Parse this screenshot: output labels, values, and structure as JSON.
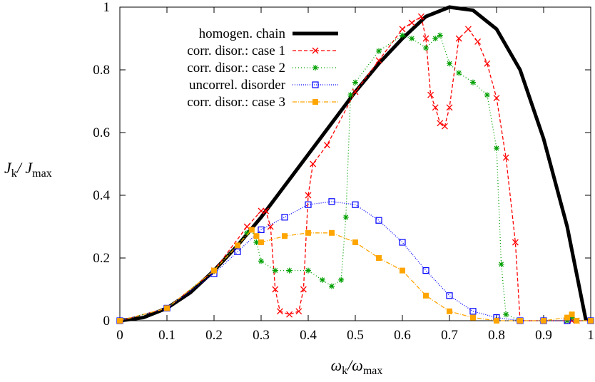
{
  "chart_data": {
    "type": "line",
    "title": "",
    "xlim": [
      0,
      1
    ],
    "ylim": [
      0,
      1
    ],
    "xticks": [
      "0",
      "0.1",
      "0.2",
      "0.3",
      "0.4",
      "0.5",
      "0.6",
      "0.7",
      "0.8",
      "0.9",
      "1"
    ],
    "yticks": [
      "0",
      "0.2",
      "0.4",
      "0.6",
      "0.8",
      "1"
    ],
    "xlabel": {
      "main": "ω",
      "sub1": "k",
      "sep": "/ω",
      "sub2": "max"
    },
    "ylabel": {
      "main": "J",
      "sub1": "k",
      "sep": "/ J",
      "sub2": "max"
    },
    "legend_position": "top-left",
    "series": [
      {
        "name": "homogen. chain",
        "color": "#000000",
        "marker": "dot",
        "dash": "",
        "x": [
          0,
          0.05,
          0.1,
          0.15,
          0.2,
          0.25,
          0.3,
          0.35,
          0.4,
          0.45,
          0.5,
          0.55,
          0.6,
          0.65,
          0.7,
          0.75,
          0.8,
          0.85,
          0.9,
          0.95,
          0.99
        ],
        "y": [
          0,
          0.01,
          0.04,
          0.09,
          0.16,
          0.24,
          0.33,
          0.43,
          0.53,
          0.63,
          0.73,
          0.82,
          0.9,
          0.97,
          1.0,
          0.99,
          0.93,
          0.8,
          0.58,
          0.3,
          0.0
        ]
      },
      {
        "name": "corr. disor.: case 1",
        "color": "#ff0000",
        "marker": "x",
        "dash": "5,3",
        "x": [
          0,
          0.1,
          0.2,
          0.27,
          0.3,
          0.31,
          0.32,
          0.33,
          0.34,
          0.36,
          0.38,
          0.39,
          0.4,
          0.41,
          0.44,
          0.5,
          0.55,
          0.6,
          0.62,
          0.64,
          0.65,
          0.66,
          0.67,
          0.68,
          0.69,
          0.7,
          0.72,
          0.74,
          0.76,
          0.78,
          0.8,
          0.82,
          0.84,
          0.85,
          0.9,
          0.95,
          0.96,
          0.97,
          1.0
        ],
        "y": [
          0,
          0.04,
          0.16,
          0.3,
          0.35,
          0.35,
          0.3,
          0.1,
          0.03,
          0.02,
          0.03,
          0.1,
          0.4,
          0.5,
          0.56,
          0.73,
          0.83,
          0.93,
          0.95,
          0.97,
          0.9,
          0.72,
          0.68,
          0.63,
          0.62,
          0.68,
          0.9,
          0.93,
          0.89,
          0.82,
          0.71,
          0.52,
          0.25,
          0.0,
          0.0,
          0.0,
          0.0,
          0.0,
          0.0
        ]
      },
      {
        "name": "corr. disor.: case 2",
        "color": "#00a000",
        "marker": "star",
        "dash": "1,3",
        "x": [
          0,
          0.1,
          0.2,
          0.27,
          0.28,
          0.29,
          0.3,
          0.33,
          0.36,
          0.4,
          0.43,
          0.45,
          0.47,
          0.48,
          0.49,
          0.5,
          0.55,
          0.6,
          0.62,
          0.65,
          0.67,
          0.68,
          0.7,
          0.72,
          0.75,
          0.78,
          0.8,
          0.81,
          0.82,
          0.85,
          0.95,
          0.96,
          0.97,
          1.0
        ],
        "y": [
          0,
          0.04,
          0.16,
          0.28,
          0.29,
          0.25,
          0.19,
          0.16,
          0.16,
          0.16,
          0.13,
          0.11,
          0.13,
          0.33,
          0.72,
          0.76,
          0.86,
          0.91,
          0.9,
          0.87,
          0.9,
          0.91,
          0.82,
          0.79,
          0.76,
          0.72,
          0.55,
          0.18,
          0.02,
          0.0,
          0.0,
          0.01,
          0.0,
          0.0
        ]
      },
      {
        "name": "uncorrel. disorder",
        "color": "#0000ff",
        "marker": "square-open",
        "dash": "1,2",
        "x": [
          0,
          0.1,
          0.2,
          0.25,
          0.3,
          0.35,
          0.4,
          0.45,
          0.5,
          0.55,
          0.6,
          0.65,
          0.7,
          0.75,
          0.8,
          0.85,
          0.9,
          0.95,
          1.0
        ],
        "y": [
          0,
          0.04,
          0.15,
          0.22,
          0.29,
          0.33,
          0.37,
          0.38,
          0.37,
          0.32,
          0.25,
          0.16,
          0.08,
          0.03,
          0.01,
          0.0,
          0.0,
          0.0,
          0.0
        ]
      },
      {
        "name": "corr. disor.: case 3",
        "color": "#ffa500",
        "marker": "square-filled",
        "dash": "6,2,1,2",
        "x": [
          0,
          0.1,
          0.2,
          0.25,
          0.28,
          0.29,
          0.3,
          0.35,
          0.4,
          0.45,
          0.5,
          0.55,
          0.6,
          0.65,
          0.7,
          0.75,
          0.8,
          0.85,
          0.9,
          0.95,
          0.96,
          0.97,
          1.0
        ],
        "y": [
          0,
          0.04,
          0.16,
          0.24,
          0.29,
          0.27,
          0.25,
          0.27,
          0.28,
          0.28,
          0.25,
          0.2,
          0.16,
          0.08,
          0.03,
          0.01,
          0.0,
          0.0,
          0.0,
          0.01,
          0.02,
          0.0,
          0.0
        ]
      }
    ]
  }
}
